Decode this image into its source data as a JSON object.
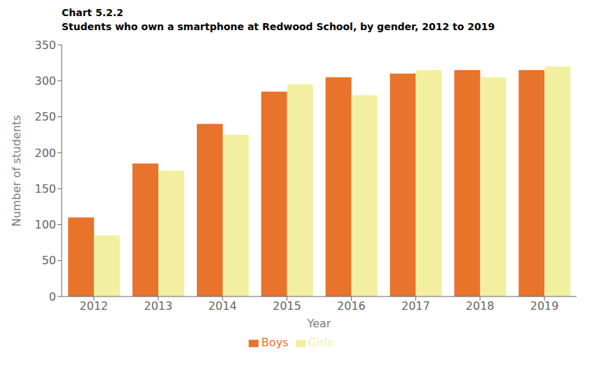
{
  "chart_data": {
    "type": "bar",
    "title": "Chart 5.2.2",
    "subtitle": "Students who own a smartphone at Redwood School, by gender, 2012 to 2019",
    "xlabel": "Year",
    "ylabel": "Number of students",
    "categories": [
      "2012",
      "2013",
      "2014",
      "2015",
      "2016",
      "2017",
      "2018",
      "2019"
    ],
    "series": [
      {
        "name": "Boys",
        "color": "#E8732A",
        "values": [
          110,
          185,
          240,
          285,
          305,
          310,
          315,
          315
        ]
      },
      {
        "name": "Girls",
        "color": "#F2F0A0",
        "values": [
          85,
          175,
          225,
          295,
          280,
          315,
          305,
          320
        ]
      }
    ],
    "ylim": [
      0,
      350
    ],
    "yticks": [
      0,
      50,
      100,
      150,
      200,
      250,
      300,
      350
    ],
    "grid": false,
    "legend": "bottom"
  }
}
